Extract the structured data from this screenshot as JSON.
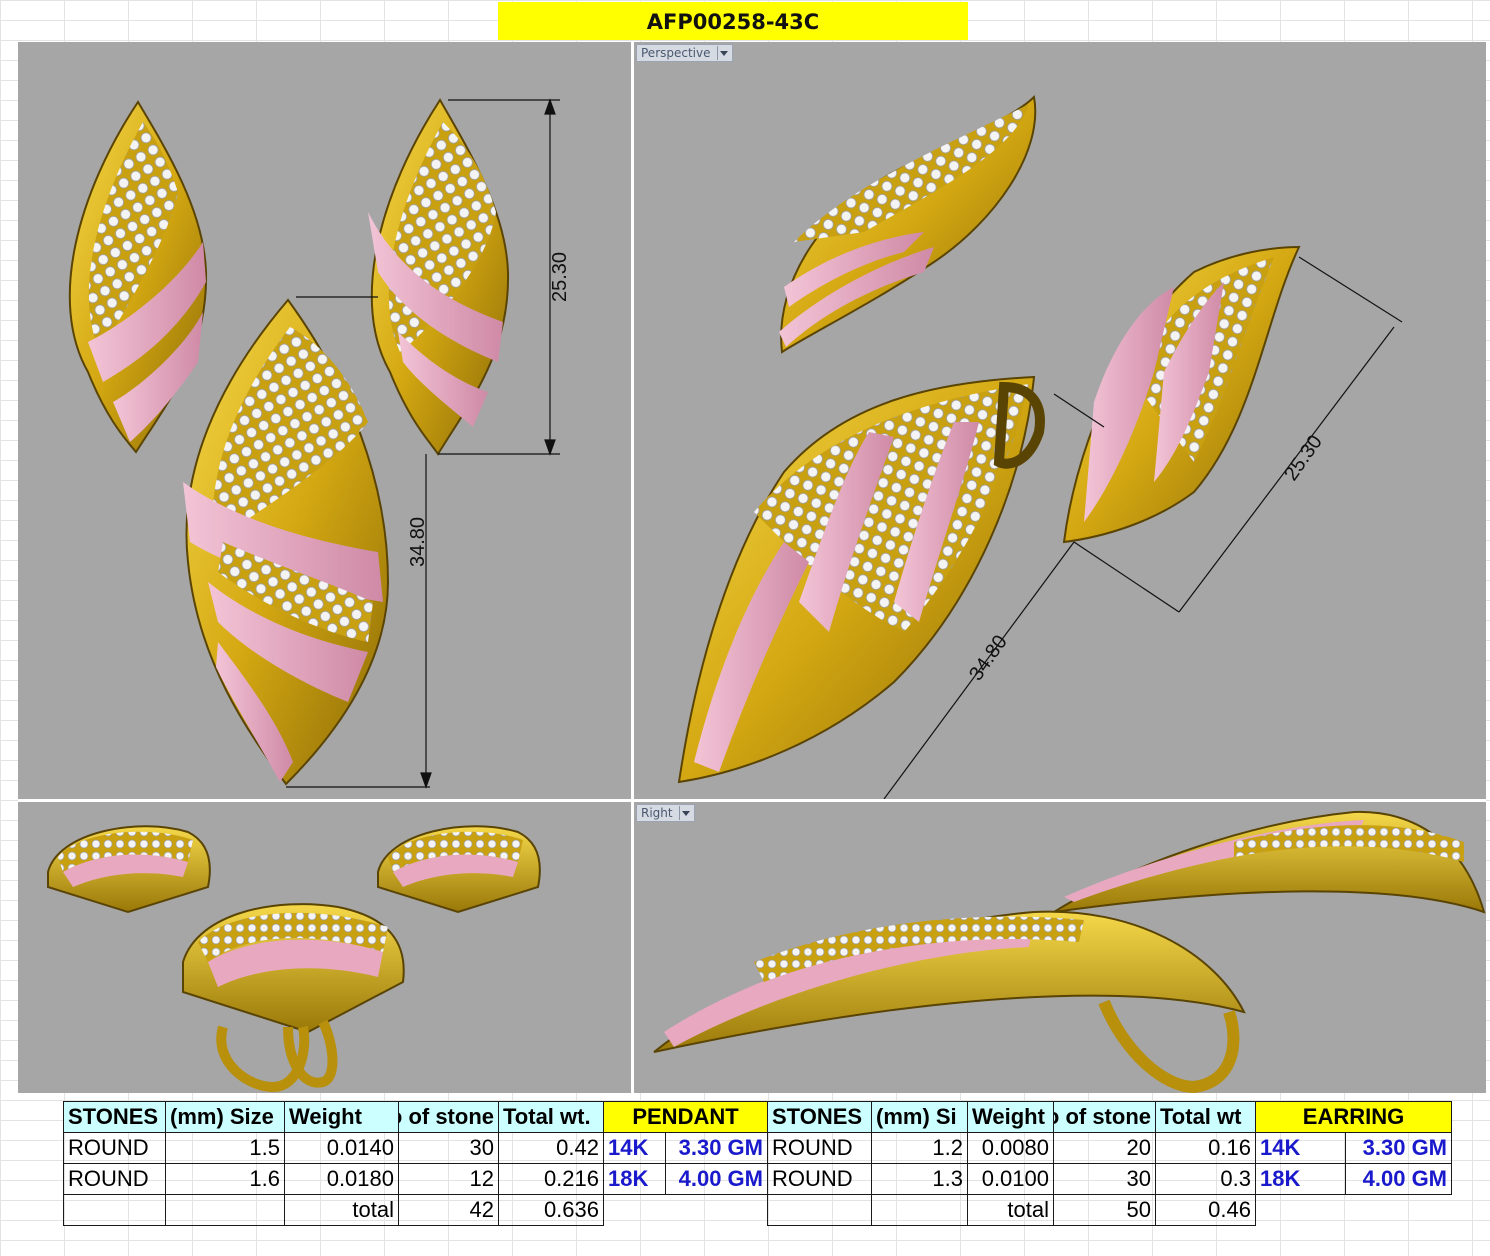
{
  "title": "AFP00258-43C",
  "viewports": {
    "perspective_label": "Perspective",
    "right_label": "Right"
  },
  "dimensions": {
    "earring_height": "25.30",
    "pendant_height": "34.80"
  },
  "colors": {
    "gold": "#e0b81c",
    "rose": "#e8a8c0",
    "stone": "#f2f2f2",
    "viewport_bg": "#a6a6a6",
    "header_yellow": "#ffff00",
    "header_cyan": "#ccffff",
    "metal_blue": "#1a1acc"
  },
  "pendant_table": {
    "headers": [
      "STONES",
      "(mm) Size",
      "Weight",
      "o of stone",
      "Total wt."
    ],
    "rows": [
      {
        "shape": "ROUND",
        "size": "1.5",
        "weight": "0.0140",
        "count": "30",
        "total": "0.42"
      },
      {
        "shape": "ROUND",
        "size": "1.6",
        "weight": "0.0180",
        "count": "12",
        "total": "0.216"
      }
    ],
    "total_label": "total",
    "total_count": "42",
    "total_weight": "0.636"
  },
  "pendant_metal": {
    "label": "PENDANT",
    "rows": [
      {
        "karat": "14K",
        "weight": "3.30 GM"
      },
      {
        "karat": "18K",
        "weight": "4.00 GM"
      }
    ]
  },
  "earring_table": {
    "headers": [
      "STONES",
      "(mm) Si",
      "Weight",
      "o of stone",
      "Total wt"
    ],
    "rows": [
      {
        "shape": "ROUND",
        "size": "1.2",
        "weight": "0.0080",
        "count": "20",
        "total": "0.16"
      },
      {
        "shape": "ROUND",
        "size": "1.3",
        "weight": "0.0100",
        "count": "30",
        "total": "0.3"
      }
    ],
    "total_label": "total",
    "total_count": "50",
    "total_weight": "0.46"
  },
  "earring_metal": {
    "label": "EARRING",
    "rows": [
      {
        "karat": "14K",
        "weight": "3.30 GM"
      },
      {
        "karat": "18K",
        "weight": "4.00 GM"
      }
    ]
  }
}
